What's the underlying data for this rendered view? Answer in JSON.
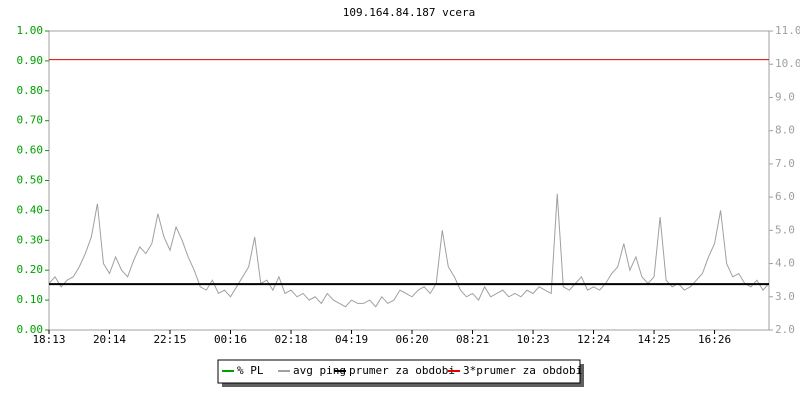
{
  "chart_data": {
    "type": "line",
    "title": "109.164.84.187 vcera",
    "xlim": [
      0,
      11.9
    ],
    "xticks": [
      {
        "value": 0,
        "label": "18:13"
      },
      {
        "value": 1,
        "label": "20:14"
      },
      {
        "value": 2,
        "label": "22:15"
      },
      {
        "value": 3,
        "label": "00:16"
      },
      {
        "value": 4,
        "label": "02:18"
      },
      {
        "value": 5,
        "label": "04:19"
      },
      {
        "value": 6,
        "label": "06:20"
      },
      {
        "value": 7,
        "label": "08:21"
      },
      {
        "value": 8,
        "label": "10:23"
      },
      {
        "value": 9,
        "label": "12:24"
      },
      {
        "value": 10,
        "label": "14:25"
      },
      {
        "value": 11,
        "label": "16:26"
      }
    ],
    "ylim": [
      0,
      1
    ],
    "yticks": [
      {
        "value": 0,
        "label": "0.00"
      },
      {
        "value": 0.1,
        "label": "0.10"
      },
      {
        "value": 0.2,
        "label": "0.20"
      },
      {
        "value": 0.3,
        "label": "0.30"
      },
      {
        "value": 0.4,
        "label": "0.40"
      },
      {
        "value": 0.5,
        "label": "0.50"
      },
      {
        "value": 0.6,
        "label": "0.60"
      },
      {
        "value": 0.7,
        "label": "0.70"
      },
      {
        "value": 0.8,
        "label": "0.80"
      },
      {
        "value": 0.9,
        "label": "0.90"
      },
      {
        "value": 1,
        "label": "1.00"
      }
    ],
    "y2lim": [
      2,
      11
    ],
    "y2ticks": [
      {
        "value": 2,
        "label": "2.0"
      },
      {
        "value": 3,
        "label": "3.0"
      },
      {
        "value": 4,
        "label": "4.0"
      },
      {
        "value": 5,
        "label": "5.0"
      },
      {
        "value": 6,
        "label": "6.0"
      },
      {
        "value": 7,
        "label": "7.0"
      },
      {
        "value": 8,
        "label": "8.0"
      },
      {
        "value": 9,
        "label": "9.0"
      },
      {
        "value": 10,
        "label": "10.0"
      },
      {
        "value": 11,
        "label": "11.0"
      }
    ],
    "x": [
      0,
      0.1,
      0.2,
      0.3,
      0.4,
      0.5,
      0.6,
      0.7,
      0.8,
      0.9,
      1,
      1.1,
      1.2,
      1.3,
      1.4,
      1.5,
      1.6,
      1.7,
      1.8,
      1.9,
      2,
      2.1,
      2.2,
      2.3,
      2.4,
      2.5,
      2.6,
      2.7,
      2.8,
      2.9,
      3,
      3.1,
      3.2,
      3.3,
      3.4,
      3.5,
      3.6,
      3.7,
      3.8,
      3.9,
      4,
      4.1,
      4.2,
      4.3,
      4.4,
      4.5,
      4.6,
      4.7,
      4.8,
      4.9,
      5,
      5.1,
      5.2,
      5.3,
      5.4,
      5.5,
      5.6,
      5.7,
      5.8,
      5.9,
      6,
      6.1,
      6.2,
      6.3,
      6.4,
      6.5,
      6.6,
      6.7,
      6.8,
      6.9,
      7,
      7.1,
      7.2,
      7.3,
      7.4,
      7.5,
      7.6,
      7.7,
      7.8,
      7.9,
      8,
      8.1,
      8.2,
      8.3,
      8.4,
      8.5,
      8.6,
      8.7,
      8.8,
      8.9,
      9,
      9.1,
      9.2,
      9.3,
      9.4,
      9.5,
      9.6,
      9.7,
      9.8,
      9.9,
      10,
      10.1,
      10.2,
      10.3,
      10.4,
      10.5,
      10.6,
      10.7,
      10.8,
      10.9,
      11,
      11.1,
      11.2,
      11.3,
      11.4,
      11.5,
      11.6,
      11.7,
      11.8,
      11.9
    ],
    "series": [
      {
        "name": "% PL",
        "color": "#00a000"
      },
      {
        "name": "avg ping",
        "color": "#a0a0a0",
        "axis": "y2",
        "values": [
          3.4,
          3.6,
          3.3,
          3.5,
          3.6,
          3.9,
          4.3,
          4.8,
          5.8,
          4.0,
          3.7,
          4.2,
          3.8,
          3.6,
          4.1,
          4.5,
          4.3,
          4.6,
          5.5,
          4.8,
          4.4,
          5.1,
          4.7,
          4.2,
          3.8,
          3.3,
          3.2,
          3.5,
          3.1,
          3.2,
          3.0,
          3.3,
          3.6,
          3.9,
          4.8,
          3.4,
          3.5,
          3.2,
          3.6,
          3.1,
          3.2,
          3.0,
          3.1,
          2.9,
          3.0,
          2.8,
          3.1,
          2.9,
          2.8,
          2.7,
          2.9,
          2.8,
          2.8,
          2.9,
          2.7,
          3.0,
          2.8,
          2.9,
          3.2,
          3.1,
          3.0,
          3.2,
          3.3,
          3.1,
          3.4,
          5.0,
          3.9,
          3.6,
          3.2,
          3.0,
          3.1,
          2.9,
          3.3,
          3.0,
          3.1,
          3.2,
          3.0,
          3.1,
          3.0,
          3.2,
          3.1,
          3.3,
          3.2,
          3.1,
          6.1,
          3.3,
          3.2,
          3.4,
          3.6,
          3.2,
          3.3,
          3.2,
          3.4,
          3.7,
          3.9,
          4.6,
          3.8,
          4.2,
          3.6,
          3.4,
          3.6,
          5.4,
          3.5,
          3.3,
          3.4,
          3.2,
          3.3,
          3.5,
          3.7,
          4.2,
          4.6,
          5.6,
          4.0,
          3.6,
          3.7,
          3.4,
          3.3,
          3.5,
          3.2,
          3.4
        ]
      },
      {
        "name": "prumer za obdobi",
        "color": "#000000",
        "axis": "y2",
        "value": 3.38
      },
      {
        "name": "3*prumer za obdobi",
        "color": "#e00000",
        "axis": "y2",
        "value": 10.14
      }
    ]
  }
}
